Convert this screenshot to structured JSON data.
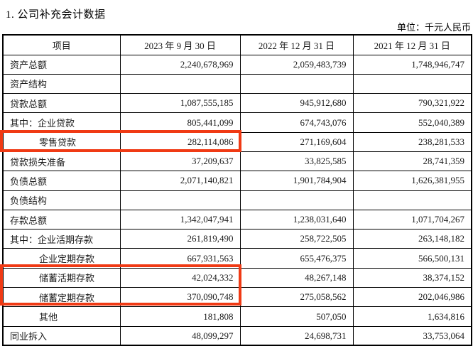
{
  "page": {
    "title": "1. 公司补充会计数据",
    "unit_label": "单位：千元人民币"
  },
  "table": {
    "columns": [
      "项目",
      "2023 年 9 月 30 日",
      "2022 年 12 月 31 日",
      "2021 年 12 月 31 日"
    ],
    "rows": [
      {
        "label": "资产总额",
        "indent": 0,
        "values": [
          "2,240,678,969",
          "2,059,483,739",
          "1,748,946,747"
        ]
      },
      {
        "label": "资产结构",
        "indent": 0,
        "values": [
          "",
          "",
          ""
        ]
      },
      {
        "label": "贷款总额",
        "indent": 0,
        "values": [
          "1,087,555,185",
          "945,912,680",
          "790,321,922"
        ]
      },
      {
        "label": "其中：企业贷款",
        "indent": 0,
        "values": [
          "805,441,099",
          "674,743,076",
          "552,040,389"
        ]
      },
      {
        "label": "零售贷款",
        "indent": 1,
        "values": [
          "282,114,086",
          "271,169,604",
          "238,281,533"
        ]
      },
      {
        "label": "贷款损失准备",
        "indent": 0,
        "values": [
          "37,209,637",
          "33,825,585",
          "28,741,359"
        ]
      },
      {
        "label": "负债总额",
        "indent": 0,
        "values": [
          "2,071,140,821",
          "1,901,784,904",
          "1,626,381,955"
        ]
      },
      {
        "label": "负债结构",
        "indent": 0,
        "values": [
          "",
          "",
          ""
        ]
      },
      {
        "label": "存款总额",
        "indent": 0,
        "values": [
          "1,342,047,941",
          "1,238,031,640",
          "1,071,704,267"
        ]
      },
      {
        "label": "其中：企业活期存款",
        "indent": 0,
        "values": [
          "261,819,490",
          "258,722,505",
          "263,148,182"
        ]
      },
      {
        "label": "企业定期存款",
        "indent": 1,
        "values": [
          "667,931,563",
          "655,476,375",
          "566,500,131"
        ]
      },
      {
        "label": "储蓄活期存款",
        "indent": 1,
        "values": [
          "42,024,332",
          "48,267,148",
          "38,374,152"
        ]
      },
      {
        "label": "储蓄定期存款",
        "indent": 1,
        "values": [
          "370,090,748",
          "275,058,562",
          "202,046,986"
        ]
      },
      {
        "label": "其他",
        "indent": 1,
        "values": [
          "181,808",
          "507,050",
          "1,634,816"
        ]
      },
      {
        "label": "同业拆入",
        "indent": 0,
        "values": [
          "48,099,297",
          "24,698,731",
          "33,753,064"
        ]
      }
    ]
  },
  "annotations": {
    "highlight_color": "#f03a14",
    "boxes": [
      {
        "name": "retail-loans-highlight",
        "covers": "零售贷款 行（项目列 + 2023 年 9 月 30 日 列）"
      },
      {
        "name": "savings-deposits-highlight",
        "covers": "储蓄活期存款 / 储蓄定期存款 行（项目列 + 2023 年 9 月 30 日 列）"
      }
    ]
  }
}
